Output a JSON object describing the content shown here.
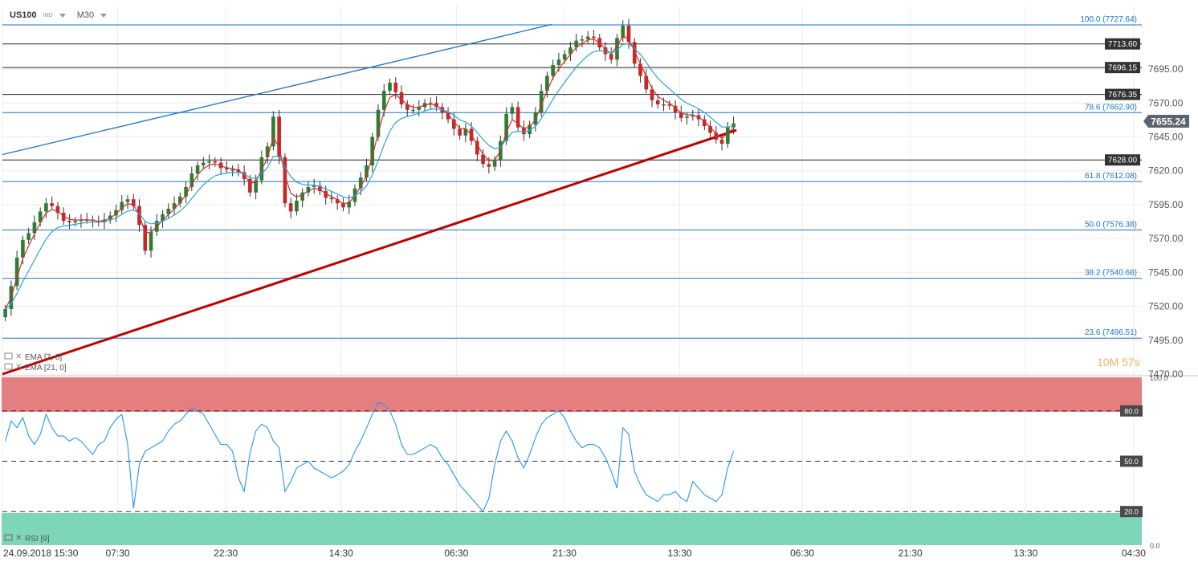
{
  "header": {
    "symbol": "US100",
    "type_tag": "IND",
    "timeframe": "M30"
  },
  "legend": {
    "ema_fast": "EMA [7, 0]",
    "ema_slow": "EMA [21, 0]",
    "rsi": "RSI [9]"
  },
  "countdown": "10M 57s",
  "colors": {
    "bull": "#2e7d32",
    "bear": "#c62828",
    "ema_fast": "#d32f2f",
    "ema_slow": "#29a3dd",
    "fib_line": "#1a73c8",
    "trend_up": "#c00000",
    "channel_top": "#1a73c8",
    "rsi_line": "#2196f3",
    "overbought_zone": "#e57f7f",
    "oversold_zone": "#7dd6b5"
  },
  "chart_data": {
    "type": "candlestick",
    "symbol": "US100",
    "timeframe": "M30",
    "y_range": [
      7470,
      7730
    ],
    "y_ticks": [
      "7695.00",
      "7670.00",
      "7645.00",
      "7620.00",
      "7595.00",
      "7570.00",
      "7545.00",
      "7520.00",
      "7495.00",
      "7470.00"
    ],
    "x_range_hours": [
      0,
      253
    ],
    "x_labels": [
      {
        "label": "24.09.2018  15:30",
        "h": 0
      },
      {
        "label": "07:30",
        "h": 16
      },
      {
        "label": "22:30",
        "h": 31
      },
      {
        "label": "14:30",
        "h": 47
      },
      {
        "label": "06:30",
        "h": 63
      },
      {
        "label": "21:30",
        "h": 78
      },
      {
        "label": "13:30",
        "h": 94
      },
      {
        "label": "06:30",
        "h": 111
      },
      {
        "label": "21:30",
        "h": 126
      },
      {
        "label": "13:30",
        "h": 142
      },
      {
        "label": "04:30",
        "h": 157
      }
    ],
    "current_price": "7655.24",
    "horizontal_levels": [
      {
        "value": 7713.6,
        "label": "7713.60"
      },
      {
        "value": 7696.15,
        "label": "7696.15"
      },
      {
        "value": 7676.35,
        "label": "7676.35"
      },
      {
        "value": 7628.0,
        "label": "7628.00"
      }
    ],
    "fibonacci": [
      {
        "value": 7727.64,
        "label": "100.0 (7727.64)"
      },
      {
        "value": 7662.9,
        "label": "78.6 (7662.90)"
      },
      {
        "value": 7612.08,
        "label": "61.8 (7612.08)"
      },
      {
        "value": 7576.38,
        "label": "50.0 (7576.38)"
      },
      {
        "value": 7540.68,
        "label": "38.2 (7540.68)"
      },
      {
        "value": 7496.51,
        "label": "23.6 (7496.51)"
      }
    ],
    "trendlines": [
      {
        "name": "upper",
        "x1": 0,
        "y1": 7632,
        "x2": 122,
        "y2": 7728
      },
      {
        "name": "support",
        "x1": 0,
        "y1": 7470,
        "x2": 163,
        "y2": 7650
      }
    ],
    "close_series": [
      7518,
      7535,
      7556,
      7569,
      7574,
      7582,
      7590,
      7596,
      7594,
      7589,
      7583,
      7582,
      7583,
      7584,
      7584,
      7583,
      7582,
      7584,
      7587,
      7591,
      7597,
      7599,
      7594,
      7580,
      7561,
      7575,
      7583,
      7588,
      7592,
      7596,
      7601,
      7608,
      7618,
      7624,
      7626,
      7627,
      7626,
      7622,
      7621,
      7621,
      7619,
      7614,
      7604,
      7613,
      7630,
      7638,
      7660,
      7630,
      7596,
      7590,
      7598,
      7604,
      7608,
      7609,
      7605,
      7600,
      7599,
      7596,
      7593,
      7597,
      7607,
      7615,
      7624,
      7645,
      7665,
      7679,
      7685,
      7678,
      7669,
      7665,
      7665,
      7667,
      7670,
      7670,
      7667,
      7663,
      7658,
      7651,
      7646,
      7651,
      7642,
      7632,
      7625,
      7623,
      7628,
      7642,
      7662,
      7667,
      7652,
      7647,
      7654,
      7663,
      7679,
      7690,
      7698,
      7702,
      7706,
      7711,
      7716,
      7717,
      7719,
      7718,
      7711,
      7706,
      7702,
      7718,
      7727,
      7715,
      7699,
      7690,
      7680,
      7672,
      7669,
      7669,
      7668,
      7663,
      7659,
      7660,
      7661,
      7658,
      7653,
      7648,
      7643,
      7640,
      7652,
      7655
    ],
    "rsi": {
      "name": "RSI [9]",
      "y_range": [
        0,
        100
      ],
      "levels": [
        80,
        50,
        20
      ],
      "tick_labels": [
        "100.0",
        "80.0",
        "50.0",
        "20.0",
        "0.0"
      ],
      "values": [
        62,
        74,
        70,
        76,
        65,
        60,
        66,
        78,
        70,
        65,
        65,
        62,
        64,
        62,
        58,
        54,
        60,
        62,
        70,
        75,
        78,
        60,
        22,
        48,
        56,
        58,
        60,
        62,
        68,
        72,
        74,
        78,
        82,
        80,
        78,
        72,
        66,
        60,
        60,
        56,
        40,
        32,
        55,
        68,
        72,
        70,
        62,
        58,
        32,
        38,
        46,
        48,
        50,
        46,
        44,
        42,
        40,
        42,
        44,
        48,
        56,
        62,
        70,
        78,
        85,
        84,
        80,
        72,
        60,
        54,
        54,
        56,
        58,
        60,
        58,
        52,
        48,
        42,
        36,
        32,
        28,
        24,
        20,
        28,
        48,
        62,
        68,
        62,
        52,
        46,
        54,
        64,
        72,
        76,
        78,
        80,
        76,
        68,
        62,
        58,
        60,
        60,
        58,
        52,
        44,
        34,
        70,
        66,
        44,
        36,
        30,
        28,
        26,
        30,
        30,
        32,
        28,
        26,
        38,
        34,
        30,
        28,
        26,
        30,
        46,
        56
      ]
    }
  }
}
